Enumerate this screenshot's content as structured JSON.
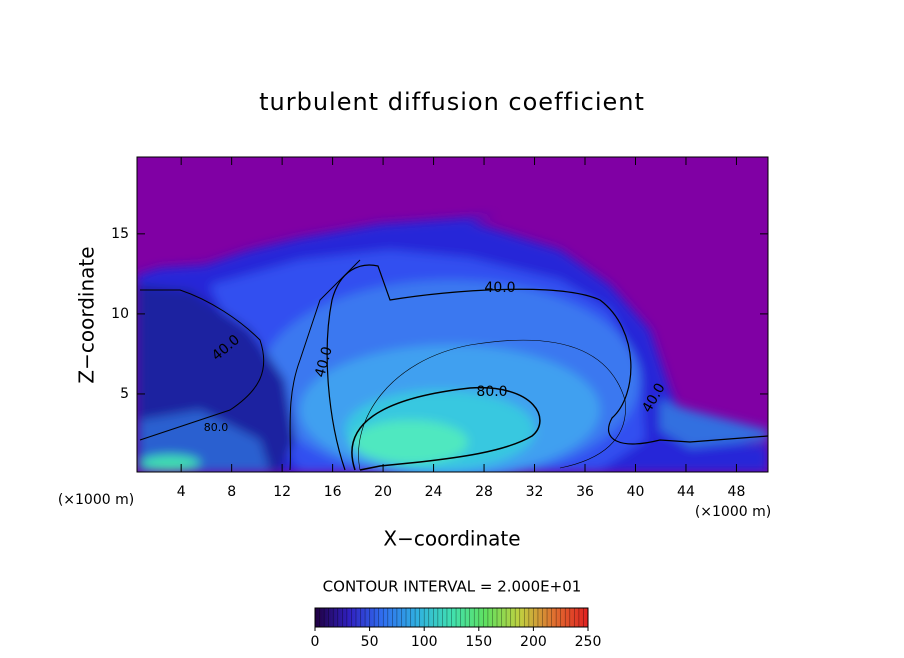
{
  "chart_data": {
    "type": "contour",
    "title": "turbulent diffusion coefficient",
    "xlabel": "X−coordinate",
    "ylabel": "Z−coordinate",
    "x_unit_label": "(×1000 m)",
    "xlim": [
      0.5,
      50.5
    ],
    "ylim": [
      0.125,
      19.8
    ],
    "xticks": [
      4,
      8,
      12,
      16,
      20,
      24,
      28,
      32,
      36,
      40,
      44,
      48
    ],
    "yticks": [
      5,
      10,
      15
    ],
    "contour_interval_text": "CONTOUR INTERVAL = 2.000E+01",
    "contour_labels": [
      "40.0",
      "80.0",
      "40.0",
      "40.0",
      "40.0",
      "80.0"
    ],
    "colorbar": {
      "lim": [
        0,
        250
      ],
      "ticks": [
        0,
        50,
        100,
        150,
        200,
        250
      ],
      "colors": [
        "#200040",
        "#3020c0",
        "#3070f0",
        "#30b0e0",
        "#40e0b0",
        "#60e060",
        "#c0d040",
        "#e07030",
        "#e02020"
      ]
    }
  }
}
